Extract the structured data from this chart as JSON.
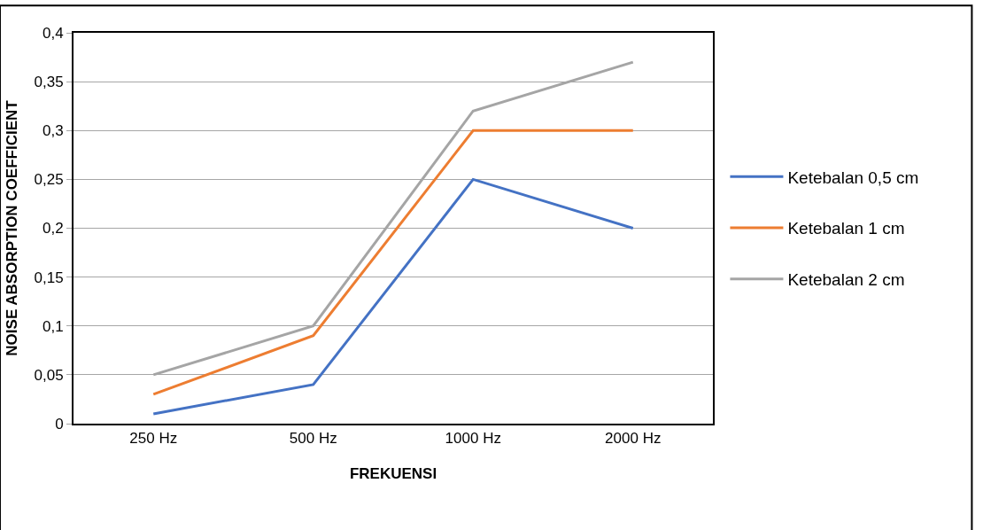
{
  "chart_data": {
    "type": "line",
    "xlabel": "FREKUENSI",
    "ylabel": "NOISE ABSORPTION COEFFICIENT",
    "categories": [
      "250 Hz",
      "500 Hz",
      "1000 Hz",
      "2000 Hz"
    ],
    "series": [
      {
        "name": "Ketebalan 0,5 cm",
        "color": "#4472c4",
        "values": [
          0.01,
          0.04,
          0.25,
          0.2
        ]
      },
      {
        "name": "Ketebalan 1 cm",
        "color": "#ed7d31",
        "values": [
          0.03,
          0.09,
          0.3,
          0.3
        ]
      },
      {
        "name": "Ketebalan 2 cm",
        "color": "#a5a5a5",
        "values": [
          0.05,
          0.1,
          0.32,
          0.37
        ]
      }
    ],
    "ylim": [
      0,
      0.4
    ],
    "yticks": [
      0,
      {
        "value": 0.05,
        "label": "0,05"
      },
      {
        "value": 0.1,
        "label": "0,1"
      },
      {
        "value": 0.15,
        "label": "0,15"
      },
      {
        "value": 0.2,
        "label": "0,2"
      },
      {
        "value": 0.25,
        "label": "0,25"
      },
      {
        "value": 0.3,
        "label": "0,3"
      },
      {
        "value": 0.35,
        "label": "0,35"
      },
      {
        "value": 0.4,
        "label": "0,4"
      }
    ],
    "grid": "y",
    "legend": "right",
    "marker": "none",
    "line_style": "solid"
  }
}
